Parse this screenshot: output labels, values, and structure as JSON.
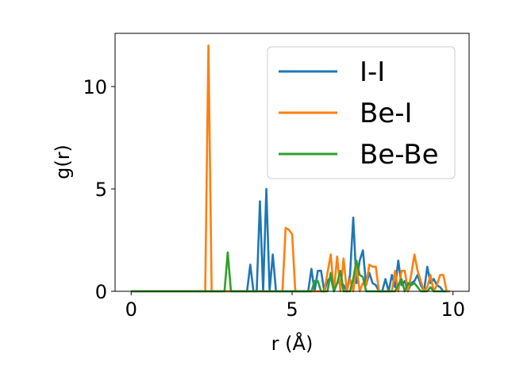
{
  "chart_data": {
    "type": "line",
    "xlabel": "r (Å)",
    "ylabel": "g(r)",
    "xlim": [
      -0.5,
      10.5
    ],
    "ylim": [
      0,
      12.6
    ],
    "xticks": [
      0,
      5,
      10
    ],
    "yticks": [
      0,
      5,
      10
    ],
    "legend_position": "top-right",
    "series": [
      {
        "name": "I-I",
        "color": "#1f77b4",
        "x": [
          0,
          3.6,
          3.7,
          3.8,
          3.9,
          4.0,
          4.1,
          4.2,
          4.3,
          4.4,
          4.5,
          4.6,
          5.5,
          5.6,
          5.7,
          5.8,
          5.9,
          6.0,
          6.1,
          6.2,
          6.3,
          6.4,
          6.5,
          6.6,
          6.7,
          6.8,
          6.9,
          7.0,
          7.1,
          7.2,
          7.3,
          7.4,
          7.5,
          7.6,
          7.7,
          7.8,
          7.9,
          8.0,
          8.1,
          8.2,
          8.3,
          8.4,
          8.5,
          8.6,
          8.7,
          8.8,
          8.9,
          9.0,
          9.1,
          9.2,
          9.3,
          9.4,
          9.5,
          9.6,
          9.7,
          9.8,
          9.9
        ],
        "y": [
          0,
          0,
          1.3,
          0,
          0,
          4.4,
          0,
          5.0,
          0,
          1.8,
          0,
          0,
          0,
          1.1,
          0,
          1.0,
          1.0,
          0,
          0.5,
          0.7,
          0,
          0.4,
          0.5,
          0.3,
          0,
          0.8,
          3.6,
          0.4,
          1.5,
          2.0,
          0.3,
          0.9,
          0.4,
          0.3,
          0,
          0,
          0.6,
          0,
          0.8,
          0.2,
          1.5,
          0.3,
          0.5,
          0,
          0.4,
          0.5,
          0.8,
          0.3,
          0,
          1.2,
          0.4,
          0.6,
          0.3,
          0.2,
          0,
          0,
          0
        ]
      },
      {
        "name": "Be-I",
        "color": "#ff7f0e",
        "x": [
          0,
          2.3,
          2.4,
          2.5,
          4.6,
          4.7,
          4.8,
          4.9,
          5.0,
          5.1,
          5.2,
          6.0,
          6.1,
          6.2,
          6.3,
          6.4,
          6.5,
          6.6,
          6.7,
          6.8,
          6.9,
          7.0,
          7.1,
          7.2,
          7.3,
          7.4,
          7.5,
          7.6,
          7.7,
          7.8,
          7.9,
          8.0,
          8.1,
          8.2,
          8.3,
          8.4,
          8.5,
          8.6,
          8.7,
          8.8,
          8.9,
          9.0,
          9.1,
          9.2,
          9.3,
          9.4,
          9.5,
          9.6,
          9.7,
          9.8,
          9.9
        ],
        "y": [
          0,
          0,
          12.0,
          0,
          0,
          0,
          3.1,
          3.0,
          2.8,
          0,
          0,
          0,
          0.9,
          1.8,
          0,
          1.7,
          0,
          1.6,
          0,
          0.6,
          0,
          1.2,
          0,
          0.4,
          0.3,
          1.3,
          1.2,
          1.2,
          0,
          0,
          0,
          0,
          0,
          1.0,
          0,
          1.0,
          1.0,
          0,
          0.8,
          1.8,
          1.0,
          0.5,
          0,
          0.2,
          0.8,
          0,
          0.3,
          0.8,
          0.8,
          0,
          0
        ]
      },
      {
        "name": "Be-Be",
        "color": "#2ca02c",
        "x": [
          0,
          2.9,
          3.0,
          3.1,
          5.6,
          5.7,
          5.8,
          5.9,
          6.0,
          6.1,
          6.2,
          6.3,
          6.4,
          6.5,
          6.6,
          6.7,
          6.8,
          6.9,
          7.0,
          7.1,
          7.2,
          7.3,
          7.4,
          7.5,
          8.2,
          8.3,
          8.4,
          8.5,
          8.6,
          8.7,
          8.8,
          8.9,
          9.0,
          9.1,
          9.2,
          9.3,
          9.4,
          9.5,
          9.6,
          9.7,
          9.8
        ],
        "y": [
          0,
          0,
          1.9,
          0,
          0,
          0.5,
          0.5,
          0,
          0,
          0,
          0.9,
          0,
          0.4,
          1.0,
          0,
          0,
          0,
          0.6,
          1.5,
          0.8,
          0.7,
          0,
          0,
          0,
          0,
          0.3,
          0.6,
          0,
          0.4,
          0.3,
          0.4,
          0.2,
          0,
          0,
          0,
          0.2,
          0,
          0,
          0,
          0,
          0
        ]
      }
    ]
  }
}
